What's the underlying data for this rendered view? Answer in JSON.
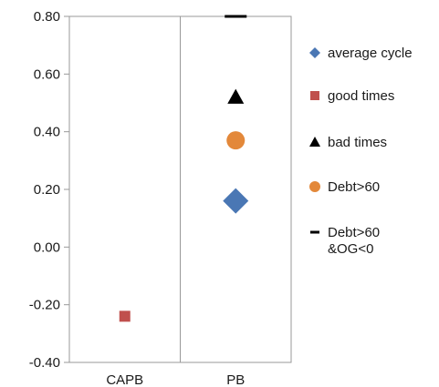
{
  "chart_data": {
    "type": "scatter",
    "categories": [
      "CAPB",
      "PB"
    ],
    "ylim": [
      -0.4,
      0.8
    ],
    "yticks": [
      "0.80",
      "0.60",
      "0.40",
      "0.20",
      "0.00",
      "-0.20",
      "-0.40"
    ],
    "ytick_values": [
      0.8,
      0.6,
      0.4,
      0.2,
      0.0,
      -0.2,
      -0.4
    ],
    "grid": "vertical category separators",
    "legend_position": "right",
    "series": [
      {
        "name": "average cycle",
        "marker": "diamond",
        "color": "#4a77b4",
        "points": [
          {
            "category": "PB",
            "value": 0.16
          }
        ]
      },
      {
        "name": "good times",
        "marker": "square",
        "color": "#c0504d",
        "points": [
          {
            "category": "CAPB",
            "value": -0.24
          }
        ]
      },
      {
        "name": "bad times",
        "marker": "triangle",
        "color": "#000000",
        "points": [
          {
            "category": "PB",
            "value": 0.52
          }
        ]
      },
      {
        "name": "Debt>60",
        "marker": "circle",
        "color": "#e3883a",
        "points": [
          {
            "category": "PB",
            "value": 0.37
          }
        ]
      },
      {
        "name": "Debt>60 &OG<0",
        "name_lines": [
          "Debt>60",
          "&OG<0"
        ],
        "marker": "dash",
        "color": "#000000",
        "points": [
          {
            "category": "PB",
            "value": 0.8
          }
        ]
      }
    ]
  }
}
